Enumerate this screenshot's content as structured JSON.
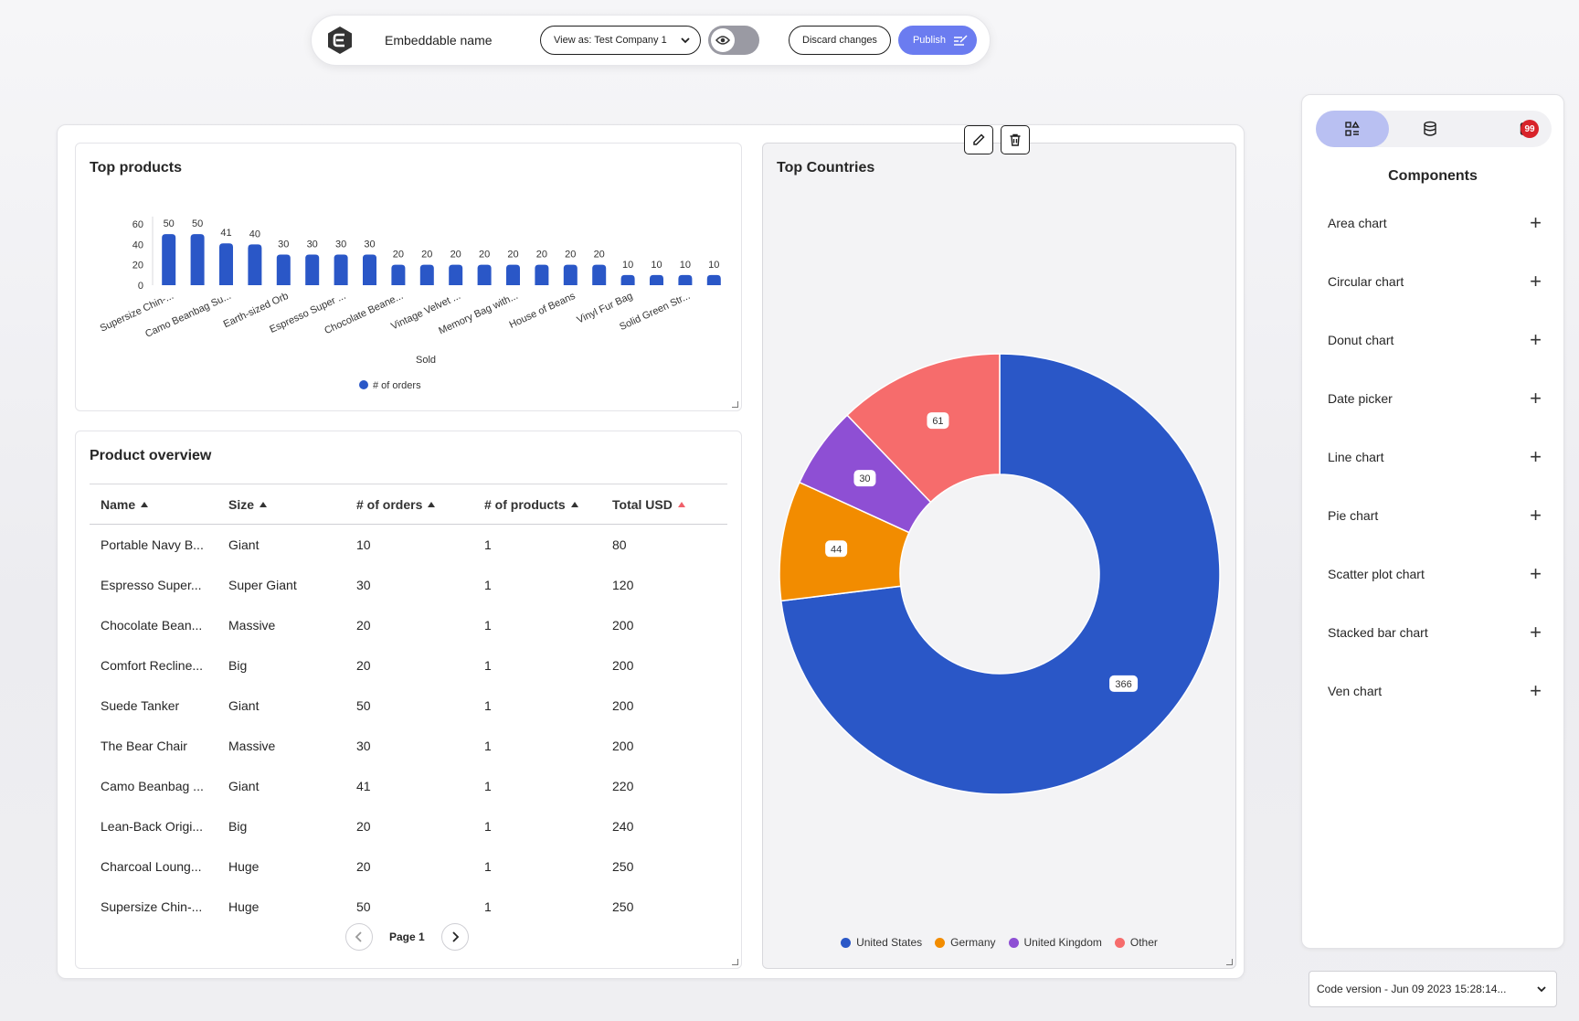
{
  "toolbar": {
    "name": "Embeddable name",
    "view_as": "View as: Test Company 1",
    "discard": "Discard changes",
    "publish": "Publish"
  },
  "top_products": {
    "title": "Top products",
    "chart_data": {
      "type": "bar",
      "title": "Top products",
      "xlabel": "Sold",
      "ylabel": "",
      "ylim": [
        0,
        60
      ],
      "yticks": [
        "0",
        "20",
        "40",
        "60"
      ],
      "categories": [
        "Supersize Chin-...",
        "",
        "Camo Beanbag Su...",
        "",
        "Earth-sized Orb",
        "",
        "Espresso Super ...",
        "",
        "Chocolate Beane...",
        "",
        "Vintage Velvet ...",
        "",
        "Memory Bag with...",
        "",
        "House of Beans",
        "",
        "Vinyl Fur Bag",
        "",
        "Solid Green Str...",
        ""
      ],
      "series": [
        {
          "name": "# of orders",
          "color": "#2a57c7",
          "values": [
            50,
            50,
            41,
            40,
            30,
            30,
            30,
            30,
            20,
            20,
            20,
            20,
            20,
            20,
            20,
            20,
            10,
            10,
            10,
            10
          ]
        }
      ],
      "grid": false,
      "legend": "bottom"
    }
  },
  "product_overview": {
    "title": "Product overview",
    "columns": [
      "Name",
      "Size",
      "# of orders",
      "# of products",
      "Total USD"
    ],
    "rows": [
      [
        "Portable Navy B...",
        "Giant",
        "10",
        "1",
        "80"
      ],
      [
        "Espresso Super...",
        "Super Giant",
        "30",
        "1",
        "120"
      ],
      [
        "Chocolate Bean...",
        "Massive",
        "20",
        "1",
        "200"
      ],
      [
        "Comfort Recline...",
        "Big",
        "20",
        "1",
        "200"
      ],
      [
        "Suede Tanker",
        "Giant",
        "50",
        "1",
        "200"
      ],
      [
        "The Bear Chair",
        "Massive",
        "30",
        "1",
        "200"
      ],
      [
        "Camo Beanbag ...",
        "Giant",
        "41",
        "1",
        "220"
      ],
      [
        "Lean-Back Origi...",
        "Big",
        "20",
        "1",
        "240"
      ],
      [
        "Charcoal Loung...",
        "Huge",
        "20",
        "1",
        "250"
      ],
      [
        "Supersize Chin-...",
        "Huge",
        "50",
        "1",
        "250"
      ]
    ],
    "page_label": "Page 1"
  },
  "top_countries": {
    "title": "Top Countries",
    "chart_data": {
      "type": "pie",
      "title": "Top Countries",
      "series": [
        {
          "name": "United States",
          "value": 366,
          "color": "#2a57c7"
        },
        {
          "name": "Germany",
          "value": 44,
          "color": "#f28c00"
        },
        {
          "name": "United Kingdom",
          "value": 30,
          "color": "#8e4fd4"
        },
        {
          "name": "Other",
          "value": 61,
          "color": "#f66c6c"
        }
      ],
      "legend": "bottom"
    }
  },
  "sidebar": {
    "badge": "99",
    "title": "Components",
    "items": [
      "Area chart",
      "Circular chart",
      "Donut chart",
      "Date picker",
      "Line chart",
      "Pie chart",
      "Scatter plot chart",
      "Stacked bar chart",
      "Ven chart"
    ]
  },
  "code_version": "Code version - Jun 09 2023 15:28:14..."
}
